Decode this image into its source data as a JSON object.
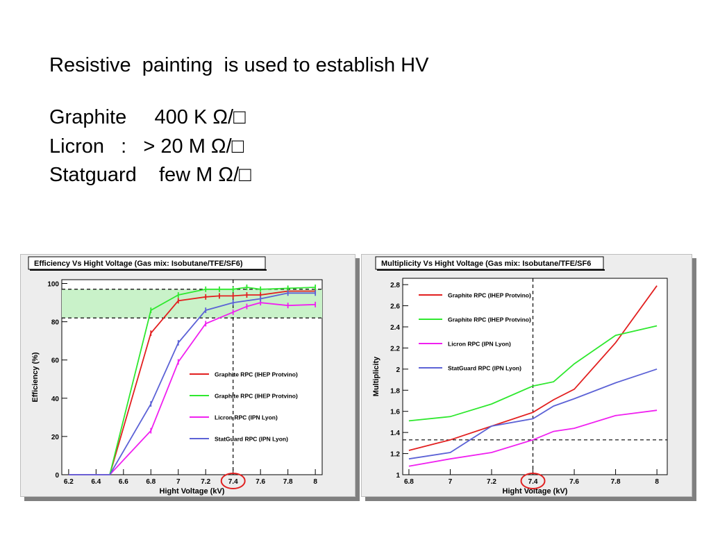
{
  "slide": {
    "headline": "Resistive  painting  is used to establish HV",
    "materials": [
      "Graphite     400 K Ω/□",
      "Licron   :   > 20 M Ω/□",
      "Statguard    few M Ω/□"
    ]
  },
  "chart_data": [
    {
      "type": "line",
      "title": "Efficiency Vs Hight Voltage (Gas mix: Isobutane/TFE/SF6)",
      "xlabel": "Hight Voltage (kV)",
      "ylabel": "Efficiency (%)",
      "xlim": [
        6.15,
        8.05
      ],
      "ylim": [
        0,
        102
      ],
      "xticks": [
        "6.2",
        "6.4",
        "6.6",
        "6.8",
        "7",
        "7.2",
        "7.4",
        "7.6",
        "7.8",
        "8"
      ],
      "yticks": [
        "0",
        "20",
        "40",
        "60",
        "80",
        "100"
      ],
      "highlight_band": [
        82,
        97
      ],
      "reference_lines": {
        "y": [
          97,
          82
        ],
        "x": 7.4
      },
      "circled_tick": "7.4",
      "legend_position": "center-right",
      "series": [
        {
          "name": "Graphite RPC (IHEP Protvino)",
          "color": "#e21f1f",
          "x": [
            6.2,
            6.3,
            6.4,
            6.5,
            6.8,
            7.0,
            7.2,
            7.3,
            7.4,
            7.5,
            7.6,
            7.8,
            8.0
          ],
          "y": [
            0,
            0,
            0,
            0,
            74,
            91,
            93,
            93.5,
            93.5,
            94,
            94,
            96,
            96
          ]
        },
        {
          "name": "Graphite RPC (IHEP Protvino)",
          "color": "#2ee82e",
          "x": [
            6.2,
            6.3,
            6.4,
            6.5,
            6.8,
            7.0,
            7.2,
            7.3,
            7.4,
            7.5,
            7.6,
            7.8,
            8.0
          ],
          "y": [
            0,
            0,
            0,
            0,
            86,
            94,
            97,
            97,
            97,
            98,
            97,
            97.5,
            98
          ]
        },
        {
          "name": "Licron RPC (IPN Lyon)",
          "color": "#f020f0",
          "x": [
            6.2,
            6.3,
            6.4,
            6.5,
            6.8,
            7.0,
            7.2,
            7.4,
            7.5,
            7.6,
            7.8,
            8.0
          ],
          "y": [
            0,
            0,
            0,
            0,
            23,
            59,
            79,
            85,
            88,
            90,
            88.5,
            89
          ]
        },
        {
          "name": "StatGuard RPC (IPN Lyon)",
          "color": "#5c62d6",
          "x": [
            6.2,
            6.3,
            6.4,
            6.5,
            6.8,
            7.0,
            7.2,
            7.4,
            7.6,
            7.8,
            8.0
          ],
          "y": [
            0,
            0,
            0,
            0,
            37,
            69,
            86,
            90,
            92,
            95,
            95
          ]
        }
      ]
    },
    {
      "type": "line",
      "title": "Multiplicity Vs Hight Voltage (Gas mix: Isobutane/TFE/SF6",
      "xlabel": "Hight Voltage (kV)",
      "ylabel": "Multiplicity",
      "xlim": [
        6.77,
        8.05
      ],
      "ylim": [
        1.0,
        2.86
      ],
      "xticks": [
        "6.8",
        "7",
        "7.2",
        "7.4",
        "7.6",
        "7.8",
        "8"
      ],
      "yticks": [
        "1",
        "1.2",
        "1.4",
        "1.6",
        "1.8",
        "2",
        "2.2",
        "2.4",
        "2.6",
        "2.8"
      ],
      "reference_lines": {
        "y": [
          1.33
        ],
        "x": 7.4
      },
      "circled_tick": "7.4",
      "legend_position": "top-left",
      "series": [
        {
          "name": "Graphite RPC (IHEP Protvino)",
          "color": "#e21f1f",
          "x": [
            6.8,
            7.0,
            7.2,
            7.4,
            7.5,
            7.6,
            7.8,
            8.0
          ],
          "y": [
            1.23,
            1.33,
            1.46,
            1.59,
            1.71,
            1.81,
            2.25,
            2.79
          ]
        },
        {
          "name": "Graphite RPC (IHEP Protvino)",
          "color": "#2ee82e",
          "x": [
            6.8,
            7.0,
            7.2,
            7.4,
            7.5,
            7.6,
            7.8,
            8.0
          ],
          "y": [
            1.51,
            1.55,
            1.67,
            1.84,
            1.88,
            2.05,
            2.32,
            2.41
          ]
        },
        {
          "name": "Licron RPC (IPN Lyon)",
          "color": "#f020f0",
          "x": [
            6.8,
            7.0,
            7.2,
            7.4,
            7.5,
            7.6,
            7.8,
            8.0
          ],
          "y": [
            1.08,
            1.15,
            1.21,
            1.33,
            1.41,
            1.44,
            1.56,
            1.61
          ]
        },
        {
          "name": "StatGuard RPC (IPN Lyon)",
          "color": "#5c62d6",
          "x": [
            6.8,
            7.0,
            7.2,
            7.4,
            7.5,
            7.6,
            7.8,
            8.0
          ],
          "y": [
            1.15,
            1.21,
            1.46,
            1.53,
            1.65,
            1.72,
            1.87,
            2.0
          ]
        }
      ]
    }
  ]
}
